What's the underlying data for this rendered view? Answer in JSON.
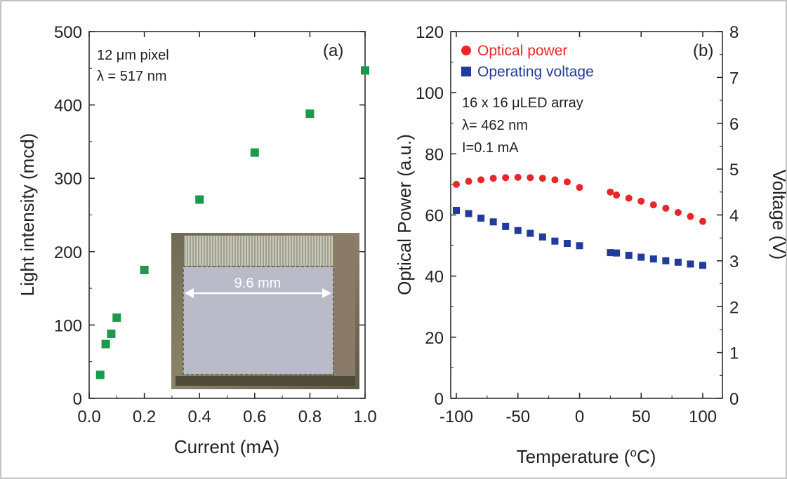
{
  "chart_data": [
    {
      "panel": "(a)",
      "type": "scatter",
      "xlabel": "Current (mA)",
      "ylabel": "Light intensity (mcd)",
      "xlim": [
        0.0,
        1.0
      ],
      "ylim": [
        0,
        500
      ],
      "x_ticks": [
        "0.0",
        "0.2",
        "0.4",
        "0.6",
        "0.8",
        "1.0"
      ],
      "y_ticks": [
        "0",
        "100",
        "200",
        "300",
        "400",
        "500"
      ],
      "annotations": [
        "12 μm pixel",
        "λ = 517 nm"
      ],
      "series": [
        {
          "color": "#1a9a4a",
          "marker": "square",
          "x": [
            0.04,
            0.06,
            0.08,
            0.1,
            0.2,
            0.4,
            0.6,
            0.8,
            1.0
          ],
          "y": [
            32,
            74,
            88,
            110,
            175,
            271,
            335,
            388,
            447
          ]
        }
      ],
      "inset": {
        "scale_label": "9.6 mm"
      }
    },
    {
      "panel": "(b)",
      "type": "scatter",
      "xlabel": "Temperature (°C)",
      "ylabel": "Optical Power (a.u.)",
      "y2label": "Voltage (V)",
      "xlim": [
        -100,
        100
      ],
      "ylim": [
        0,
        120
      ],
      "y2lim": [
        0,
        8
      ],
      "x_ticks": [
        "-100",
        "-50",
        "0",
        "50",
        "100"
      ],
      "y_ticks": [
        "0",
        "20",
        "40",
        "60",
        "80",
        "100",
        "120"
      ],
      "y2_ticks": [
        "0",
        "1",
        "2",
        "3",
        "4",
        "5",
        "6",
        "7",
        "8"
      ],
      "legend_position": "top-left",
      "annotations": [
        "16 x 16 μLED array",
        "λ= 462 nm",
        "I=0.1 mA"
      ],
      "series": [
        {
          "name": "Optical power",
          "color": "#e8262a",
          "marker": "circle",
          "axis": "left",
          "x": [
            -100,
            -90,
            -80,
            -70,
            -60,
            -50,
            -40,
            -30,
            -20,
            -10,
            0,
            25,
            30,
            40,
            50,
            60,
            70,
            80,
            90,
            100
          ],
          "y": [
            70.0,
            71.0,
            71.5,
            72.0,
            72.2,
            72.3,
            72.2,
            72.0,
            71.5,
            70.8,
            69.0,
            67.5,
            66.5,
            65.5,
            64.5,
            63.3,
            62.2,
            60.8,
            59.5,
            57.9
          ]
        },
        {
          "name": "Operating voltage",
          "color": "#1f3b9c",
          "marker": "square",
          "axis": "right",
          "x": [
            -100,
            -90,
            -80,
            -70,
            -60,
            -50,
            -40,
            -30,
            -20,
            -10,
            0,
            25,
            30,
            40,
            50,
            60,
            70,
            80,
            90,
            100
          ],
          "y": [
            4.1,
            4.03,
            3.93,
            3.85,
            3.75,
            3.66,
            3.6,
            3.52,
            3.43,
            3.38,
            3.33,
            3.18,
            3.17,
            3.12,
            3.08,
            3.04,
            3.0,
            2.97,
            2.93,
            2.9
          ]
        }
      ]
    }
  ]
}
